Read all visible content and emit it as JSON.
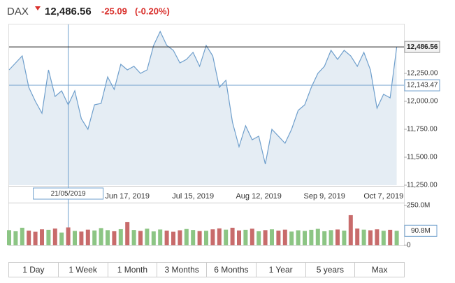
{
  "header": {
    "symbol": "DAX",
    "price": "12,486.56",
    "change": "-25.09",
    "change_pct": "(-0.20%)"
  },
  "chart_data": [
    {
      "type": "line",
      "categories": [
        null,
        null,
        null,
        null,
        null,
        null,
        null,
        null,
        null,
        "21/05/2019",
        null,
        null,
        null,
        null,
        null,
        null,
        null,
        null,
        "Jun 17, 2019",
        null,
        null,
        null,
        null,
        null,
        null,
        null,
        null,
        null,
        "Jul 15, 2019",
        null,
        null,
        null,
        null,
        null,
        null,
        null,
        null,
        null,
        "Aug 12, 2019",
        null,
        null,
        null,
        null,
        null,
        null,
        null,
        null,
        null,
        "Sep 9, 2019",
        null,
        null,
        null,
        null,
        null,
        null,
        null,
        null,
        "Oct 7, 2019",
        null,
        null
      ],
      "highlight": "21/05/2019",
      "values": [
        12281,
        12344,
        12406,
        12125,
        12000,
        11894,
        12281,
        12044,
        12094,
        11969,
        12094,
        11844,
        11750,
        11969,
        11981,
        12219,
        12106,
        12331,
        12281,
        12313,
        12250,
        12281,
        12500,
        12625,
        12500,
        12456,
        12344,
        12375,
        12438,
        12313,
        12500,
        12406,
        12125,
        12188,
        11813,
        11594,
        11781,
        11656,
        11688,
        11438,
        11750,
        11688,
        11625,
        11750,
        11919,
        11969,
        12125,
        12250,
        12313,
        12456,
        12375,
        12456,
        12406,
        12313,
        12438,
        12281,
        11938,
        12063,
        12031,
        12486.56
      ],
      "color": "#6f9fcc",
      "area_color": "#e5edf4",
      "ylim": [
        11250,
        12687.5
      ],
      "yticks": [
        {
          "value": 11250,
          "label": "11,250.00"
        },
        {
          "value": 11500,
          "label": "11,500.00"
        },
        {
          "value": 11750,
          "label": "11,750.00"
        },
        {
          "value": 12000,
          "label": "12,000.00"
        },
        {
          "value": 12250,
          "label": "12,250.00"
        }
      ],
      "last_price": {
        "value": 12486.56,
        "label": "12,486.56"
      },
      "crosshair_price": {
        "value": 12143.47,
        "label": "12,143.47"
      },
      "watermark": [
        "Investing",
        ".com"
      ]
    },
    {
      "type": "bar",
      "values": [
        95,
        88,
        110,
        92,
        85,
        100,
        97,
        105,
        80,
        112,
        90,
        86,
        98,
        93,
        108,
        95,
        88,
        101,
        145,
        96,
        90,
        104,
        87,
        99,
        92,
        85,
        94,
        102,
        96,
        89,
        91,
        100,
        106,
        98,
        110,
        93,
        97,
        104,
        88,
        95,
        100,
        92,
        98,
        86,
        94,
        90,
        97,
        103,
        88,
        95,
        99,
        92,
        189,
        105,
        98,
        94,
        100,
        91,
        97,
        90.8
      ],
      "up_color": "#8cc584",
      "down_color": "#c86b6b",
      "ylim": [
        0,
        250
      ],
      "yticks": [
        0,
        {
          "value": 250,
          "label": "250.0M"
        }
      ],
      "last": {
        "value": 90.8,
        "label": "90.8M"
      }
    }
  ],
  "ranges": [
    "1 Day",
    "1 Week",
    "1 Month",
    "3 Months",
    "6 Months",
    "1 Year",
    "5 years",
    "Max"
  ]
}
